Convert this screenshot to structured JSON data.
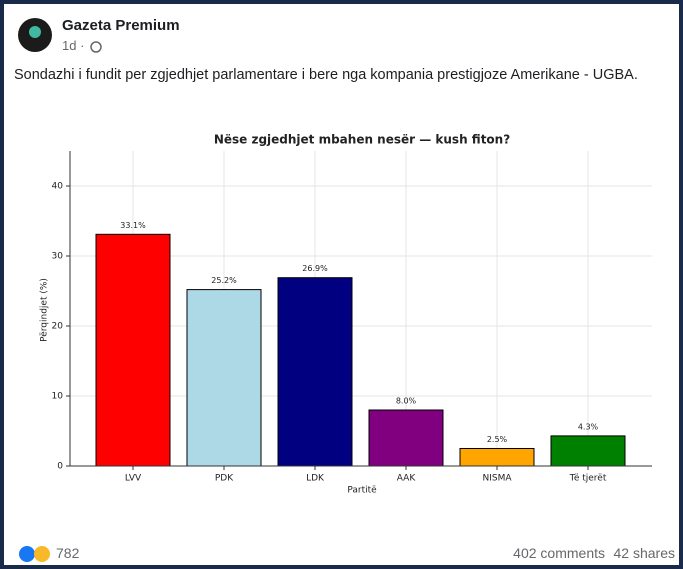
{
  "post": {
    "author": "Gazeta Premium",
    "time": "1d ·",
    "text": "Sondazhi i fundit per zgjedhjet parlamentare i bere nga kompania prestigjoze Amerikane - UGBA.",
    "reactions": "782",
    "comments": "402 comments",
    "shares": "42 shares"
  },
  "chart_data": {
    "type": "bar",
    "title": "Nëse zgjedhjet mbahen nesër — kush fiton?",
    "y_label": "Përqindjet (%)",
    "x_label": "Partitë",
    "categories": [
      "LVV",
      "PDK",
      "LDK",
      "AAK",
      "NISMA",
      "Të tjerët"
    ],
    "values": [
      33.1,
      25.2,
      26.9,
      8.0,
      2.5,
      4.3
    ],
    "value_labels": [
      "33.1%",
      "25.2%",
      "26.9%",
      "8.0%",
      "2.5%",
      "4.3%"
    ],
    "colors": [
      "#ff0000",
      "#add8e6",
      "#000080",
      "#800080",
      "#ffa500",
      "#008000"
    ],
    "ylim": [
      0,
      45
    ],
    "yticks": [
      0,
      10,
      20,
      30,
      40
    ],
    "grid": true
  }
}
